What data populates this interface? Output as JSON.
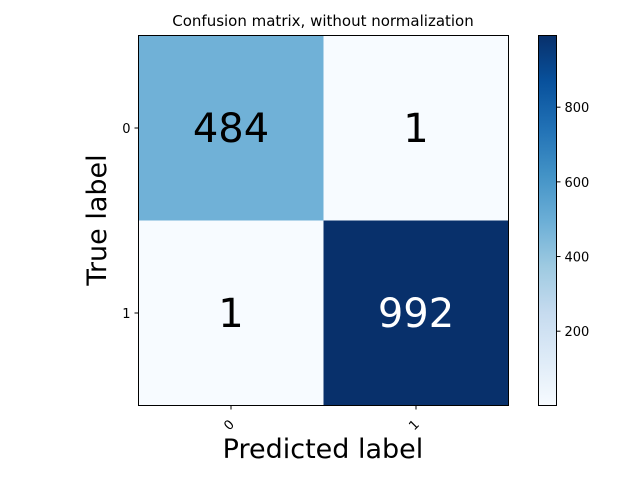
{
  "chart_data": {
    "type": "heatmap",
    "title": "Confusion matrix, without normalization",
    "xlabel": "Predicted label",
    "ylabel": "True label",
    "x_categories": [
      "0",
      "1"
    ],
    "y_categories": [
      "0",
      "1"
    ],
    "values": [
      [
        484,
        1
      ],
      [
        1,
        992
      ]
    ],
    "colormap": "Blues",
    "colorbar": {
      "range": [
        1,
        992
      ],
      "ticks": [
        200,
        400,
        600,
        800
      ],
      "tick_labels": [
        "200",
        "400",
        "600",
        "800"
      ]
    },
    "text_colors": {
      "dark": "#000000",
      "light": "#ffffff"
    }
  }
}
